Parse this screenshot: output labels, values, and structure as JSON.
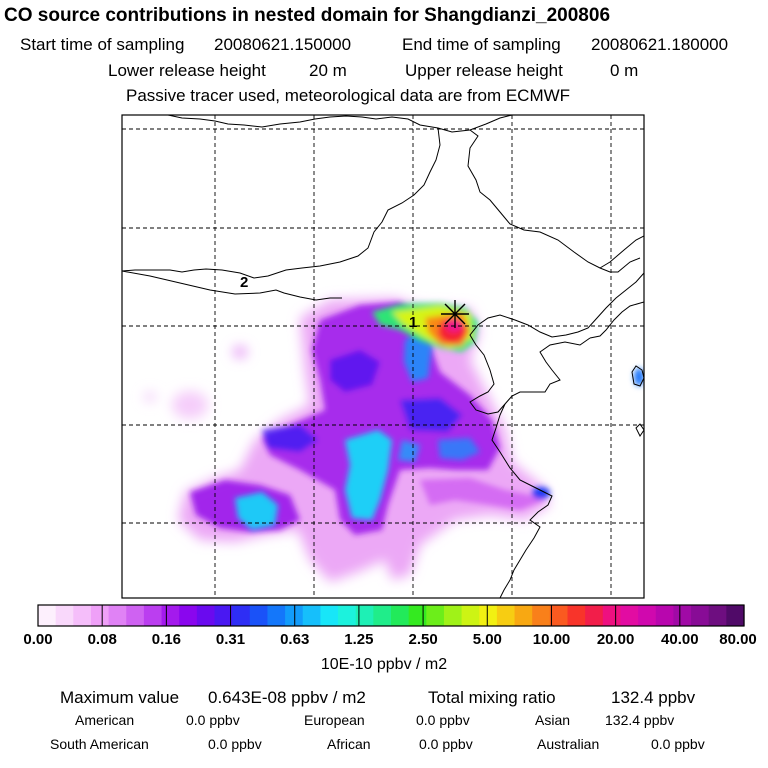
{
  "header": {
    "title": "CO  source contributions in nested domain for Shangdianzi_200806",
    "start_label": "Start time of sampling",
    "start_value": "20080621.150000",
    "end_label": "End time of sampling",
    "end_value": "20080621.180000",
    "lower_label": "Lower release height",
    "lower_value": "20 m",
    "upper_label": "Upper release height",
    "upper_value": "0 m",
    "note": "Passive tracer used, meteorological data are from ECMWF"
  },
  "map": {
    "contour_labels": [
      "2",
      "1"
    ],
    "receptor_marker": "x-star-icon",
    "frame_color": "#000000",
    "grid_style": "dashed"
  },
  "colorbar": {
    "tick_labels": [
      "0.00",
      "0.08",
      "0.16",
      "0.31",
      "0.63",
      "1.25",
      "2.50",
      "5.00",
      "10.00",
      "20.00",
      "40.00",
      "80.00"
    ],
    "unit": "10E-10 ppbv / m2",
    "colors": [
      "#fdf0fd",
      "#f9d8fb",
      "#f5befa",
      "#efa0f8",
      "#e082f5",
      "#cf62f2",
      "#bb3ef0",
      "#a41aed",
      "#8a06ee",
      "#6a0aef",
      "#4a18f2",
      "#2e2ef5",
      "#1a52f8",
      "#1477fa",
      "#129cfb",
      "#16bffb",
      "#18e6f8",
      "#1cf2dd",
      "#1ef0b5",
      "#20ed8a",
      "#22ea5a",
      "#34ea20",
      "#6cee1a",
      "#a0f218",
      "#cdf414",
      "#f2f012",
      "#f7cd12",
      "#f8a812",
      "#f9801a",
      "#fa5a20",
      "#f8342a",
      "#f21e4a",
      "#ee1080",
      "#e20ca2",
      "#d008ae",
      "#b806ae",
      "#a00aa6",
      "#880c96",
      "#6e0e80",
      "#500a68"
    ]
  },
  "stats": {
    "max_label": "Maximum value",
    "max_value": "0.643E-08 ppbv / m2",
    "total_label": "Total mixing ratio",
    "total_value": "132.4 ppbv",
    "regions": [
      {
        "name": "American",
        "value": "0.0 ppbv"
      },
      {
        "name": "European",
        "value": "0.0 ppbv"
      },
      {
        "name": "Asian",
        "value": "132.4 ppbv"
      },
      {
        "name": "South American",
        "value": "0.0 ppbv"
      },
      {
        "name": "African",
        "value": "0.0 ppbv"
      },
      {
        "name": "Australian",
        "value": "0.0 ppbv"
      }
    ]
  }
}
